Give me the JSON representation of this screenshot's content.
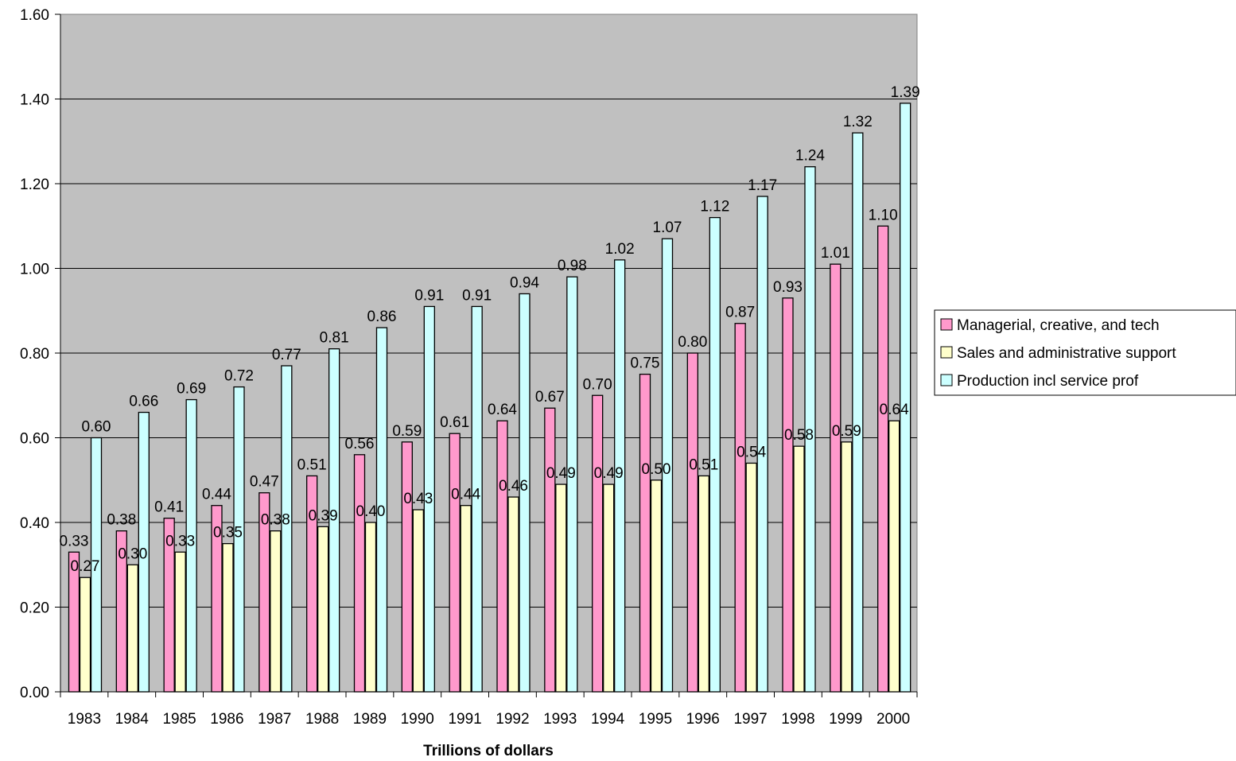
{
  "chart_data": {
    "type": "bar",
    "title": "",
    "xlabel": "Trillions of dollars",
    "ylabel": "",
    "ylim": [
      0,
      1.6
    ],
    "yticks": [
      "0.00",
      "0.20",
      "0.40",
      "0.60",
      "0.80",
      "1.00",
      "1.20",
      "1.40",
      "1.60"
    ],
    "ytick_values": [
      0,
      0.2,
      0.4,
      0.6,
      0.8,
      1.0,
      1.2,
      1.4,
      1.6
    ],
    "grid": true,
    "legend_position": "right",
    "plot_background": "#c0c0c0",
    "categories": [
      "1983",
      "1984",
      "1985",
      "1986",
      "1987",
      "1988",
      "1989",
      "1990",
      "1991",
      "1992",
      "1993",
      "1994",
      "1995",
      "1996",
      "1997",
      "1998",
      "1999",
      "2000"
    ],
    "series": [
      {
        "name": "Managerial, creative, and tech",
        "color": "#ff99cc",
        "values": [
          0.33,
          0.38,
          0.41,
          0.44,
          0.47,
          0.51,
          0.56,
          0.59,
          0.61,
          0.64,
          0.67,
          0.7,
          0.75,
          0.8,
          0.87,
          0.93,
          1.01,
          1.1
        ],
        "labels": [
          "0.33",
          "0.38",
          "0.41",
          "0.44",
          "0.47",
          "0.51",
          "0.56",
          "0.59",
          "0.61",
          "0.64",
          "0.67",
          "0.70",
          "0.75",
          "0.80",
          "0.87",
          "0.93",
          "1.01",
          "1.10"
        ]
      },
      {
        "name": "Sales and administrative support",
        "color": "#ffffcc",
        "values": [
          0.27,
          0.3,
          0.33,
          0.35,
          0.38,
          0.39,
          0.4,
          0.43,
          0.44,
          0.46,
          0.49,
          0.49,
          0.5,
          0.51,
          0.54,
          0.58,
          0.59,
          0.64
        ],
        "labels": [
          "0.27",
          "0.30",
          "0.33",
          "0.35",
          "0.38",
          "0.39",
          "0.40",
          "0.43",
          "0.44",
          "0.46",
          "0.49",
          "0.49",
          "0.50",
          "0.51",
          "0.54",
          "0.58",
          "0.59",
          "0.64"
        ]
      },
      {
        "name": "Production incl service prof",
        "color": "#ccffff",
        "values": [
          0.6,
          0.66,
          0.69,
          0.72,
          0.77,
          0.81,
          0.86,
          0.91,
          0.91,
          0.94,
          0.98,
          1.02,
          1.07,
          1.12,
          1.17,
          1.24,
          1.32,
          1.39
        ],
        "labels": [
          "0.60",
          "0.66",
          "0.69",
          "0.72",
          "0.77",
          "0.81",
          "0.86",
          "0.91",
          "0.91",
          "0.94",
          "0.98",
          "1.02",
          "1.07",
          "1.12",
          "1.17",
          "1.24",
          "1.32",
          "1.39"
        ]
      }
    ]
  }
}
